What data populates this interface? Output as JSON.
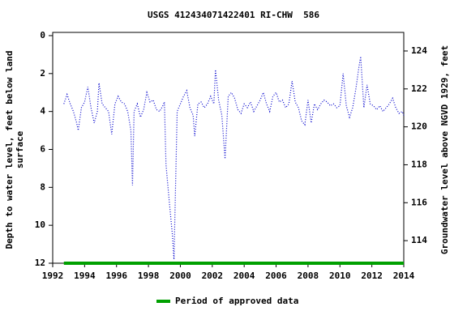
{
  "chart_data": {
    "type": "line",
    "title": "USGS 412434071422401 RI-CHW  586",
    "ylabel": [
      "Depth to water level, feet below land",
      "surface"
    ],
    "y2label": "Groundwater level above NGVD 1929, feet",
    "xlim": [
      1992,
      2014
    ],
    "xticks": [
      1992,
      1994,
      1996,
      1998,
      2000,
      2002,
      2004,
      2006,
      2008,
      2010,
      2012,
      2014
    ],
    "ylim": [
      -0.17,
      12
    ],
    "yticks": [
      0,
      2,
      4,
      6,
      8,
      10,
      12
    ],
    "invert_y": true,
    "y2lim": [
      112.81,
      124.98
    ],
    "y2ticks": [
      114,
      116,
      118,
      120,
      122,
      124
    ],
    "series": [
      {
        "name": "Depth to water level",
        "color": "#0000cc",
        "x": [
          1992.7,
          1992.9,
          1993.1,
          1993.3,
          1993.5,
          1993.6,
          1993.8,
          1994.0,
          1994.2,
          1994.4,
          1994.6,
          1994.8,
          1994.9,
          1995.1,
          1995.3,
          1995.5,
          1995.7,
          1995.9,
          1996.1,
          1996.3,
          1996.5,
          1996.7,
          1996.9,
          1997.0,
          1997.1,
          1997.3,
          1997.5,
          1997.7,
          1997.9,
          1998.1,
          1998.3,
          1998.5,
          1998.7,
          1998.9,
          1999.0,
          1999.1,
          1999.3,
          1999.5,
          1999.6,
          1999.8,
          2000.0,
          2000.2,
          2000.4,
          2000.6,
          2000.8,
          2000.9,
          2001.1,
          2001.3,
          2001.5,
          2001.7,
          2001.9,
          2002.1,
          2002.2,
          2002.4,
          2002.6,
          2002.8,
          2003.0,
          2003.2,
          2003.4,
          2003.6,
          2003.8,
          2004.0,
          2004.2,
          2004.4,
          2004.6,
          2004.8,
          2005.0,
          2005.2,
          2005.4,
          2005.6,
          2005.8,
          2006.0,
          2006.2,
          2006.4,
          2006.6,
          2006.8,
          2007.0,
          2007.2,
          2007.4,
          2007.6,
          2007.8,
          2008.0,
          2008.2,
          2008.4,
          2008.6,
          2008.8,
          2009.0,
          2009.2,
          2009.4,
          2009.6,
          2009.8,
          2010.0,
          2010.2,
          2010.4,
          2010.6,
          2010.8,
          2011.0,
          2011.2,
          2011.3,
          2011.5,
          2011.7,
          2011.9,
          2012.1,
          2012.3,
          2012.5,
          2012.7,
          2012.9,
          2013.1,
          2013.3,
          2013.5,
          2013.7,
          2013.9,
          2014.0
        ],
        "values": [
          3.6,
          3.1,
          3.6,
          4.0,
          4.6,
          5.0,
          3.8,
          3.5,
          2.7,
          3.8,
          4.6,
          4.0,
          2.5,
          3.6,
          3.8,
          4.0,
          5.2,
          3.6,
          3.2,
          3.5,
          3.6,
          4.0,
          5.0,
          7.9,
          4.0,
          3.6,
          4.3,
          3.9,
          3.0,
          3.5,
          3.4,
          3.9,
          4.0,
          3.7,
          3.5,
          6.8,
          8.7,
          10.5,
          11.8,
          4.0,
          3.6,
          3.2,
          2.9,
          3.8,
          4.2,
          5.3,
          3.6,
          3.5,
          3.8,
          3.6,
          3.2,
          3.6,
          1.8,
          3.4,
          4.2,
          6.5,
          3.2,
          3.0,
          3.3,
          3.9,
          4.1,
          3.6,
          3.8,
          3.5,
          4.0,
          3.7,
          3.4,
          3.0,
          3.6,
          4.0,
          3.2,
          3.0,
          3.5,
          3.4,
          3.8,
          3.6,
          2.4,
          3.5,
          3.8,
          4.5,
          4.7,
          3.4,
          4.6,
          3.6,
          3.9,
          3.6,
          3.4,
          3.5,
          3.7,
          3.6,
          3.8,
          3.7,
          2.0,
          3.7,
          4.3,
          3.8,
          2.8,
          1.6,
          1.1,
          3.8,
          2.6,
          3.6,
          3.7,
          3.9,
          3.7,
          4.0,
          3.8,
          3.6,
          3.3,
          3.8,
          4.1,
          4.0,
          4.2
        ]
      },
      {
        "name": "Period of approved data",
        "color": "#00a000",
        "x": [
          1992.7,
          2014.0
        ],
        "values": [
          12,
          12
        ]
      }
    ]
  }
}
